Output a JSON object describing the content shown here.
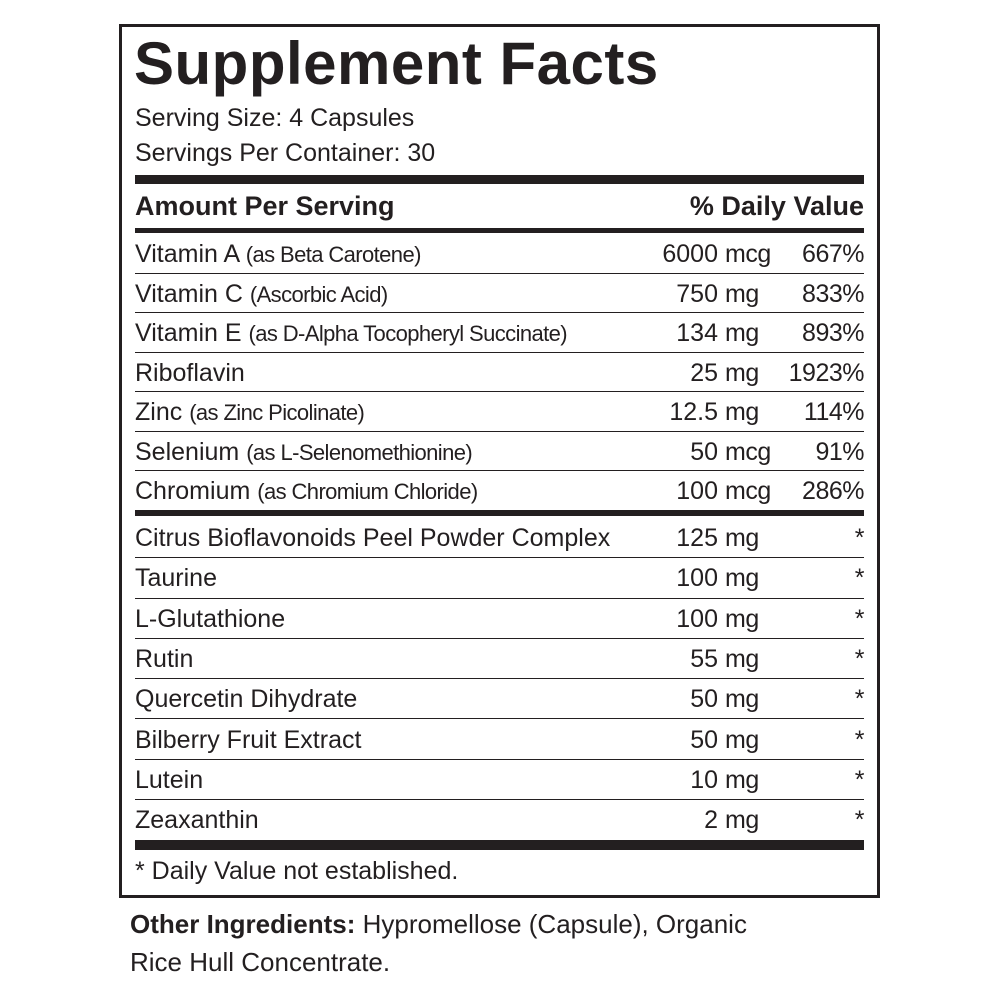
{
  "title": "Supplement Facts",
  "serving_size": "Serving Size: 4 Capsules",
  "servings_per_container": "Servings Per Container: 30",
  "header": {
    "amount": "Amount Per Serving",
    "daily_value": "% Daily Value"
  },
  "nutrients": [
    {
      "name": "Vitamin A",
      "note": "(as Beta Carotene)",
      "amount": "6000",
      "unit": "mcg",
      "dv": "667%"
    },
    {
      "name": "Vitamin C",
      "note": "(Ascorbic Acid)",
      "amount": "750",
      "unit": "mg",
      "dv": "833%"
    },
    {
      "name": "Vitamin E",
      "note": "(as D-Alpha Tocopheryl Succinate)",
      "amount": "134",
      "unit": "mg",
      "dv": "893%"
    },
    {
      "name": "Riboflavin",
      "amount": "25",
      "unit": "mg",
      "dv": "1923%"
    },
    {
      "name": "Zinc",
      "note": "(as Zinc Picolinate)",
      "amount": "12.5",
      "unit": "mg",
      "dv": "114%"
    },
    {
      "name": "Selenium",
      "note": "(as L-Selenomethionine)",
      "amount": "50",
      "unit": "mcg",
      "dv": "91%"
    },
    {
      "name": "Chromium",
      "note": "(as Chromium Chloride)",
      "amount": "100",
      "unit": "mcg",
      "dv": "286%"
    }
  ],
  "other_nutrients": [
    {
      "name": "Citrus Bioflavonoids Peel Powder Complex",
      "amount": "125",
      "unit": "mg",
      "dv": "*"
    },
    {
      "name": "Taurine",
      "amount": "100",
      "unit": "mg",
      "dv": "*"
    },
    {
      "name": "L-Glutathione",
      "amount": "100",
      "unit": "mg",
      "dv": "*"
    },
    {
      "name": "Rutin",
      "amount": "55",
      "unit": "mg",
      "dv": "*"
    },
    {
      "name": "Quercetin Dihydrate",
      "amount": "50",
      "unit": "mg",
      "dv": "*"
    },
    {
      "name": "Bilberry Fruit Extract",
      "amount": "50",
      "unit": "mg",
      "dv": "*"
    },
    {
      "name": "Lutein",
      "amount": "10",
      "unit": "mg",
      "dv": "*"
    },
    {
      "name": "Zeaxanthin",
      "amount": "2",
      "unit": "mg",
      "dv": "*"
    }
  ],
  "footnote": "* Daily Value not established.",
  "other_ingredients": {
    "label": "Other Ingredients:",
    "text": "Hypromellose (Capsule), Organic Rice Hull Concentrate."
  }
}
